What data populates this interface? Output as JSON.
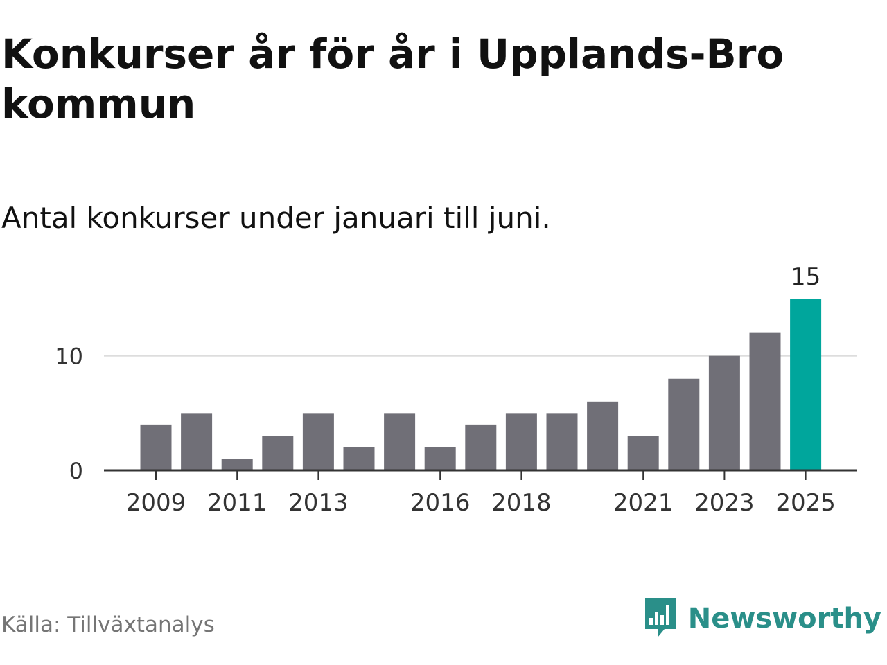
{
  "title": "Konkurser år för år i Upplands-Bro kommun",
  "subtitle": "Antal konkurser under januari till juni.",
  "source": "Källa: Tillväxtanalys",
  "brand": {
    "name": "Newsworthy",
    "logo_icon": "newsworthy-logo-icon"
  },
  "colors": {
    "bar": "#706f77",
    "highlight": "#00a69c",
    "grid": "#dddddd",
    "axis": "#333333",
    "text": "#333333"
  },
  "chart_data": {
    "type": "bar",
    "categories": [
      "2009",
      "2010",
      "2011",
      "2012",
      "2013",
      "2014",
      "2015",
      "2016",
      "2017",
      "2018",
      "2019",
      "2020",
      "2021",
      "2022",
      "2023",
      "2024",
      "2025"
    ],
    "values": [
      4,
      5,
      1,
      3,
      5,
      2,
      5,
      2,
      4,
      5,
      5,
      6,
      3,
      8,
      10,
      12,
      15
    ],
    "x_tick_labels": [
      "2009",
      "2011",
      "2013",
      "2016",
      "2018",
      "2021",
      "2023",
      "2025"
    ],
    "y_ticks": [
      0,
      10
    ],
    "ylim": [
      0,
      15
    ],
    "highlight": {
      "category": "2025",
      "label": "15"
    },
    "xlabel": "",
    "ylabel": ""
  }
}
